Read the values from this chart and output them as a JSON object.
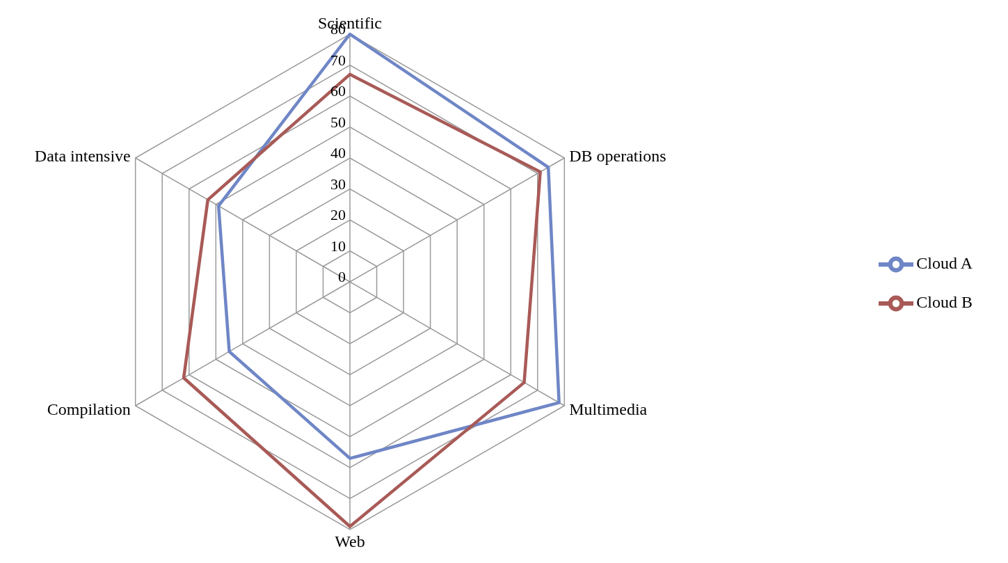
{
  "chart_data": {
    "type": "radar",
    "categories": [
      "Scientific",
      "DB operations",
      "Multimedia",
      "Web",
      "Compilation",
      "Data intensive"
    ],
    "series": [
      {
        "name": "Cloud A",
        "color": "#6f86c6",
        "values": [
          80,
          74,
          78,
          57,
          45,
          49
        ]
      },
      {
        "name": "Cloud B",
        "color": "#a85a57",
        "values": [
          67,
          71,
          65,
          79,
          62,
          53
        ]
      }
    ],
    "ylim": [
      0,
      80
    ],
    "yticks": [
      0,
      10,
      20,
      30,
      40,
      50,
      60,
      70,
      80
    ],
    "grid": true,
    "legend": "right",
    "marker": "none"
  }
}
